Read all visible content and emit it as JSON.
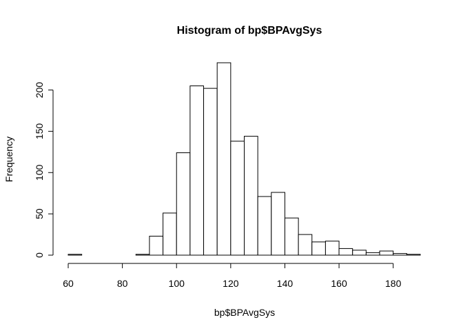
{
  "chart_data": {
    "type": "bar",
    "title": "Histogram of bp$BPAvgSys",
    "xlabel": "bp$BPAvgSys",
    "ylabel": "Frequency",
    "bins": [
      {
        "start": 60,
        "end": 65,
        "value": 1
      },
      {
        "start": 65,
        "end": 70,
        "value": 0
      },
      {
        "start": 70,
        "end": 75,
        "value": 0
      },
      {
        "start": 75,
        "end": 80,
        "value": 0
      },
      {
        "start": 80,
        "end": 85,
        "value": 0
      },
      {
        "start": 85,
        "end": 90,
        "value": 1
      },
      {
        "start": 90,
        "end": 95,
        "value": 23
      },
      {
        "start": 95,
        "end": 100,
        "value": 51
      },
      {
        "start": 100,
        "end": 105,
        "value": 124
      },
      {
        "start": 105,
        "end": 110,
        "value": 205
      },
      {
        "start": 110,
        "end": 115,
        "value": 202
      },
      {
        "start": 115,
        "end": 120,
        "value": 233
      },
      {
        "start": 120,
        "end": 125,
        "value": 138
      },
      {
        "start": 125,
        "end": 130,
        "value": 144
      },
      {
        "start": 130,
        "end": 135,
        "value": 71
      },
      {
        "start": 135,
        "end": 140,
        "value": 76
      },
      {
        "start": 140,
        "end": 145,
        "value": 45
      },
      {
        "start": 145,
        "end": 150,
        "value": 25
      },
      {
        "start": 150,
        "end": 155,
        "value": 16
      },
      {
        "start": 155,
        "end": 160,
        "value": 17
      },
      {
        "start": 160,
        "end": 165,
        "value": 8
      },
      {
        "start": 165,
        "end": 170,
        "value": 6
      },
      {
        "start": 170,
        "end": 175,
        "value": 3
      },
      {
        "start": 175,
        "end": 180,
        "value": 5
      },
      {
        "start": 180,
        "end": 185,
        "value": 2
      },
      {
        "start": 185,
        "end": 190,
        "value": 1
      }
    ],
    "x_ticks": [
      60,
      80,
      100,
      120,
      140,
      160,
      180
    ],
    "y_ticks": [
      0,
      50,
      100,
      150,
      200
    ],
    "x_range": [
      60,
      190
    ],
    "y_range": [
      0,
      233
    ],
    "grid": false,
    "legend": false
  }
}
